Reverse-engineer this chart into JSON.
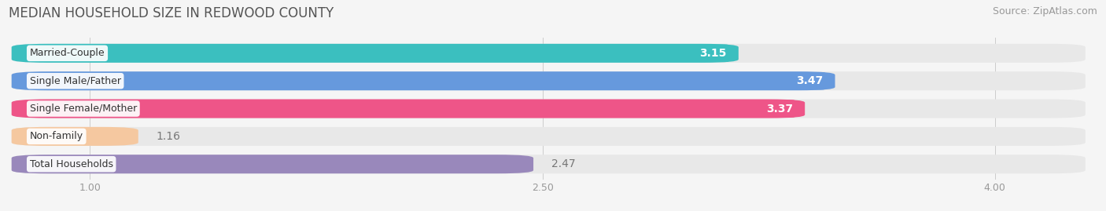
{
  "title": "MEDIAN HOUSEHOLD SIZE IN REDWOOD COUNTY",
  "source": "Source: ZipAtlas.com",
  "categories": [
    "Married-Couple",
    "Single Male/Father",
    "Single Female/Mother",
    "Non-family",
    "Total Households"
  ],
  "values": [
    3.15,
    3.47,
    3.37,
    1.16,
    2.47
  ],
  "bar_colors": [
    "#3BBFBF",
    "#6699DD",
    "#EE5588",
    "#F5C8A0",
    "#9988BB"
  ],
  "label_colors": [
    "white",
    "white",
    "white",
    "dark",
    "dark"
  ],
  "xmin": 1.0,
  "xmax": 4.0,
  "xlim_left": 0.72,
  "xlim_right": 4.35,
  "xticks": [
    1.0,
    2.5,
    4.0
  ],
  "xtick_labels": [
    "1.00",
    "2.50",
    "4.00"
  ],
  "title_fontsize": 12,
  "source_fontsize": 9,
  "bar_label_fontsize": 10,
  "category_fontsize": 9,
  "background_color": "#f5f5f5",
  "bar_background_color": "#e8e8e8"
}
